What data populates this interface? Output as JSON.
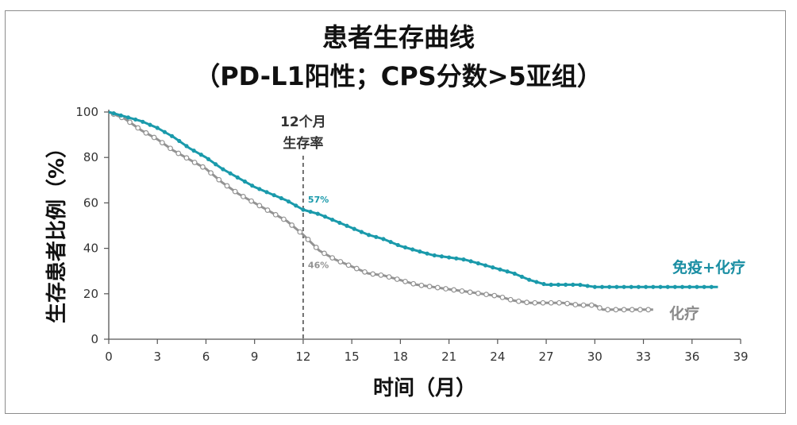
{
  "chart_data": {
    "type": "line",
    "title": "患者生存曲线",
    "subtitle": "（PD-L1阳性；CPS分数>5亚组）",
    "xlabel": "时间（月）",
    "ylabel": "生存患者比例（%）",
    "xlim": [
      0,
      39
    ],
    "ylim": [
      0,
      100
    ],
    "xticks": [
      0,
      3,
      6,
      9,
      12,
      15,
      18,
      21,
      24,
      27,
      30,
      33,
      36,
      39
    ],
    "yticks": [
      0,
      20,
      40,
      60,
      80,
      100
    ],
    "annotation": {
      "x": 12,
      "line1": "12个月",
      "line2": "生存率"
    },
    "series": [
      {
        "name": "免疫+化疗",
        "color": "#1a9aab",
        "label_at_12": "57%",
        "x": [
          0,
          1,
          2,
          3,
          4,
          5,
          6,
          7,
          8,
          9,
          10,
          11,
          12,
          13,
          14,
          15,
          16,
          17,
          18,
          19,
          20,
          21,
          22,
          23,
          24,
          25,
          26,
          27,
          28,
          29,
          30,
          31,
          32,
          33,
          34,
          35,
          36,
          37,
          37.6
        ],
        "values": [
          100,
          98,
          96,
          93,
          89,
          84,
          80,
          75,
          71,
          67,
          64,
          61,
          57,
          55,
          52,
          49,
          46,
          44,
          41,
          39,
          37,
          36,
          35,
          33,
          31,
          29,
          26,
          24,
          24,
          24,
          23,
          23,
          23,
          23,
          23,
          23,
          23,
          23,
          23
        ]
      },
      {
        "name": "化疗",
        "color": "#939393",
        "label_at_12": "46%",
        "x": [
          0,
          1,
          2,
          3,
          4,
          5,
          6,
          7,
          8,
          9,
          10,
          11,
          12,
          13,
          14,
          15,
          16,
          17,
          18,
          19,
          20,
          21,
          22,
          23,
          24,
          25,
          26,
          27,
          28,
          29,
          30,
          30.5,
          31,
          32,
          33,
          33.6
        ],
        "values": [
          100,
          97,
          92,
          88,
          83,
          79,
          75,
          69,
          64,
          60,
          56,
          52,
          46,
          39,
          35,
          32,
          29,
          28,
          26,
          24,
          23,
          22,
          21,
          20,
          19,
          17,
          16,
          16,
          16,
          15,
          15,
          13,
          13,
          13,
          13,
          13
        ]
      }
    ]
  }
}
